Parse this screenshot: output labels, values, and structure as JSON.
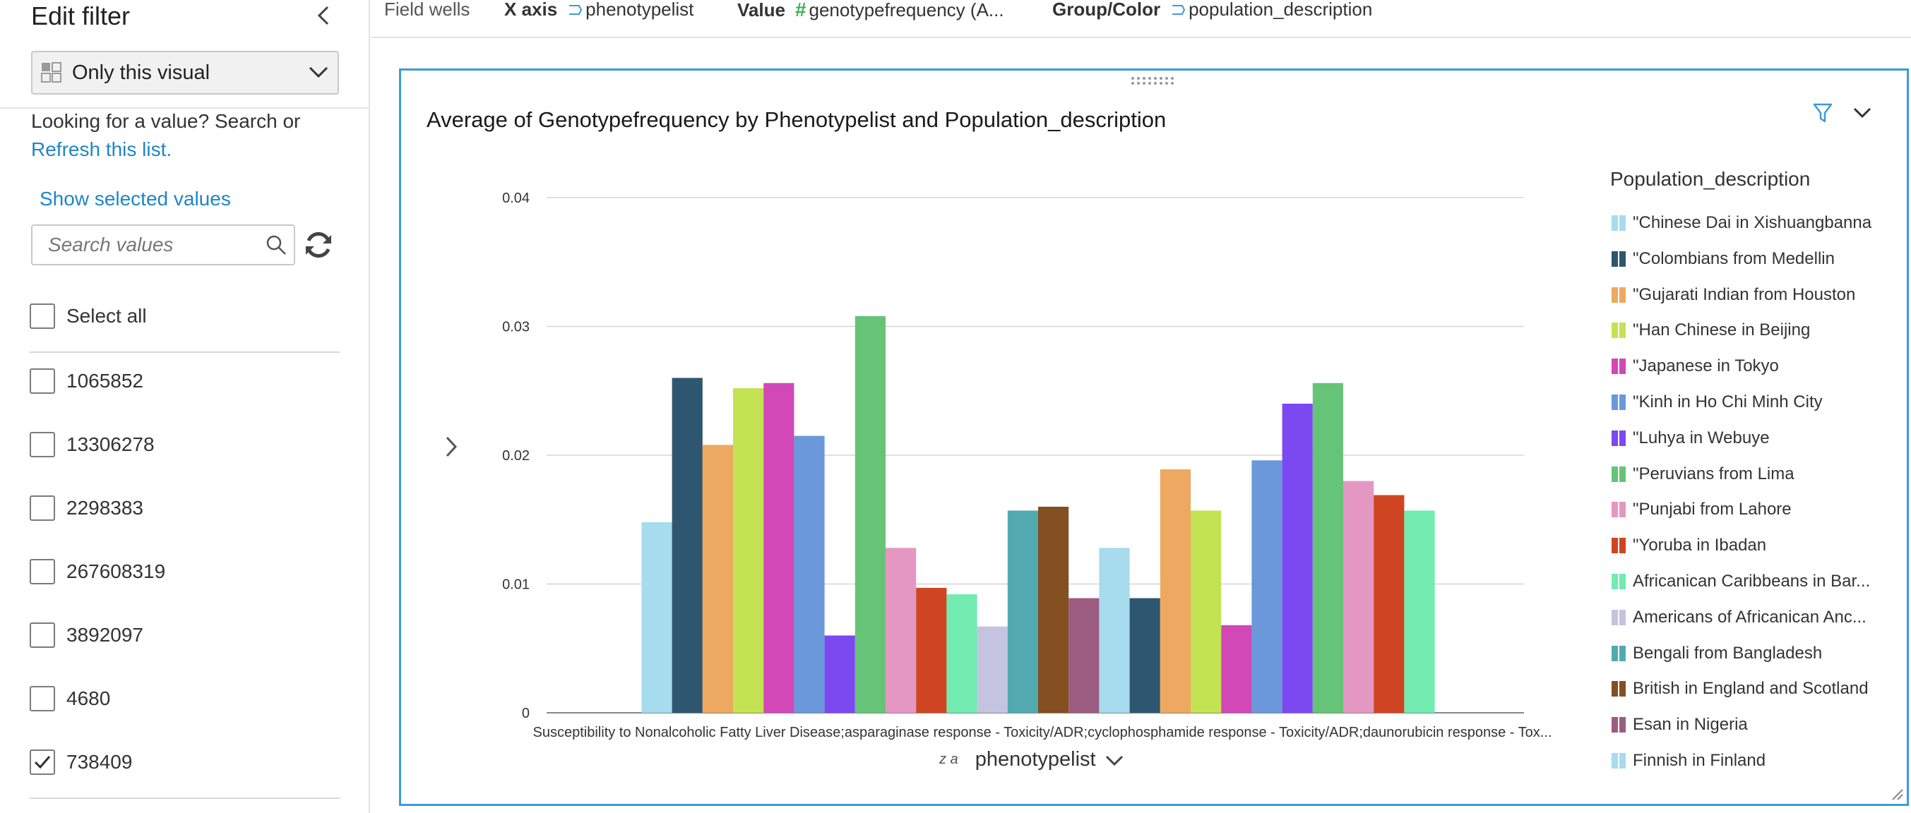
{
  "filter_panel": {
    "title": "Edit filter",
    "scope_label": "Only this visual",
    "hint_prefix": "Looking for a value? Search or",
    "hint_link": "Refresh this list.",
    "show_selected": "Show selected values",
    "search_placeholder": "Search values",
    "select_all": "Select all",
    "items": [
      {
        "label": "1065852",
        "checked": false
      },
      {
        "label": "13306278",
        "checked": false
      },
      {
        "label": "2298383",
        "checked": false
      },
      {
        "label": "267608319",
        "checked": false
      },
      {
        "label": "3892097",
        "checked": false
      },
      {
        "label": "4680",
        "checked": false
      },
      {
        "label": "738409",
        "checked": true
      }
    ]
  },
  "field_wells": {
    "title": "Field wells",
    "x_axis_label": "X axis",
    "x_axis_value": "phenotypelist",
    "value_label": "Value",
    "value_value": "genotypefrequency (A...",
    "group_label": "Group/Color",
    "group_value": "population_description"
  },
  "visual": {
    "title": "Average of Genotypefrequency by Phenotypelist and Population_description",
    "x_axis_title": "phenotypelist",
    "sort_glyph": "z a",
    "legend_title": "Population_description"
  },
  "colors": {
    "accent": "#3d9ad8",
    "link": "#1f86c8",
    "field_string": "#3d9ad8",
    "field_number": "#3fae5a"
  },
  "chart_data": {
    "type": "bar",
    "categories": [
      "Susceptibility to Nonalcoholic Fatty Liver Disease;asparaginase response - Toxicity/ADR;cyclophosphamide response - Toxicity/ADR;daunorubicin response - Tox..."
    ],
    "ylim": [
      0,
      0.04
    ],
    "yticks": [
      0,
      0.01,
      0.02,
      0.03,
      0.04
    ],
    "ytick_labels": [
      "0",
      "0.01",
      "0.02",
      "0.03",
      "0.04"
    ],
    "xlabel": "phenotypelist",
    "ylabel": "",
    "grid": true,
    "legend_position": "right",
    "series": [
      {
        "name": "\"Chinese Dai in Xishuangbanna",
        "color": "#a7dbee",
        "value": 0.0148
      },
      {
        "name": "\"Colombians from Medellin",
        "color": "#2f5670",
        "value": 0.026
      },
      {
        "name": "\"Gujarati Indian from Houston",
        "color": "#eda862",
        "value": 0.0208
      },
      {
        "name": "\"Han Chinese in Beijing",
        "color": "#c3e352",
        "value": 0.0252
      },
      {
        "name": "\"Japanese in Tokyo",
        "color": "#d148b6",
        "value": 0.0256
      },
      {
        "name": "\"Kinh in Ho Chi Minh City",
        "color": "#6a98db",
        "value": 0.0215
      },
      {
        "name": "\"Luhya in Webuye",
        "color": "#7c48ef",
        "value": 0.006
      },
      {
        "name": "\"Peruvians from Lima",
        "color": "#65c477",
        "value": 0.0308
      },
      {
        "name": "\"Punjabi from Lahore",
        "color": "#e597c3",
        "value": 0.0128
      },
      {
        "name": "\"Yoruba in Ibadan",
        "color": "#cf4521",
        "value": 0.0097
      },
      {
        "name": "Africanican Caribbeans in Bar...",
        "color": "#71ebb0",
        "value": 0.0092
      },
      {
        "name": "Americans of Africanican Anc...",
        "color": "#c4c4e0",
        "value": 0.0067
      },
      {
        "name": "Bengali from Bangladesh",
        "color": "#52aab1",
        "value": 0.0157
      },
      {
        "name": "British in England and Scotland",
        "color": "#844f21",
        "value": 0.016
      },
      {
        "name": "Esan in Nigeria",
        "color": "#9c5c81",
        "value": 0.0089
      },
      {
        "name": "Finnish in Finland",
        "color": "#a7dbee",
        "value": 0.0128
      },
      {
        "name": "",
        "color": "#2f5670",
        "value": 0.0089
      },
      {
        "name": "",
        "color": "#eda862",
        "value": 0.0189
      },
      {
        "name": "",
        "color": "#c3e352",
        "value": 0.0157
      },
      {
        "name": "",
        "color": "#d148b6",
        "value": 0.0068
      },
      {
        "name": "",
        "color": "#6a98db",
        "value": 0.0196
      },
      {
        "name": "",
        "color": "#7c48ef",
        "value": 0.024
      },
      {
        "name": "",
        "color": "#65c477",
        "value": 0.0256
      },
      {
        "name": "",
        "color": "#e597c3",
        "value": 0.018
      },
      {
        "name": "",
        "color": "#cf4521",
        "value": 0.0169
      },
      {
        "name": "",
        "color": "#71ebb0",
        "value": 0.0157
      }
    ]
  }
}
